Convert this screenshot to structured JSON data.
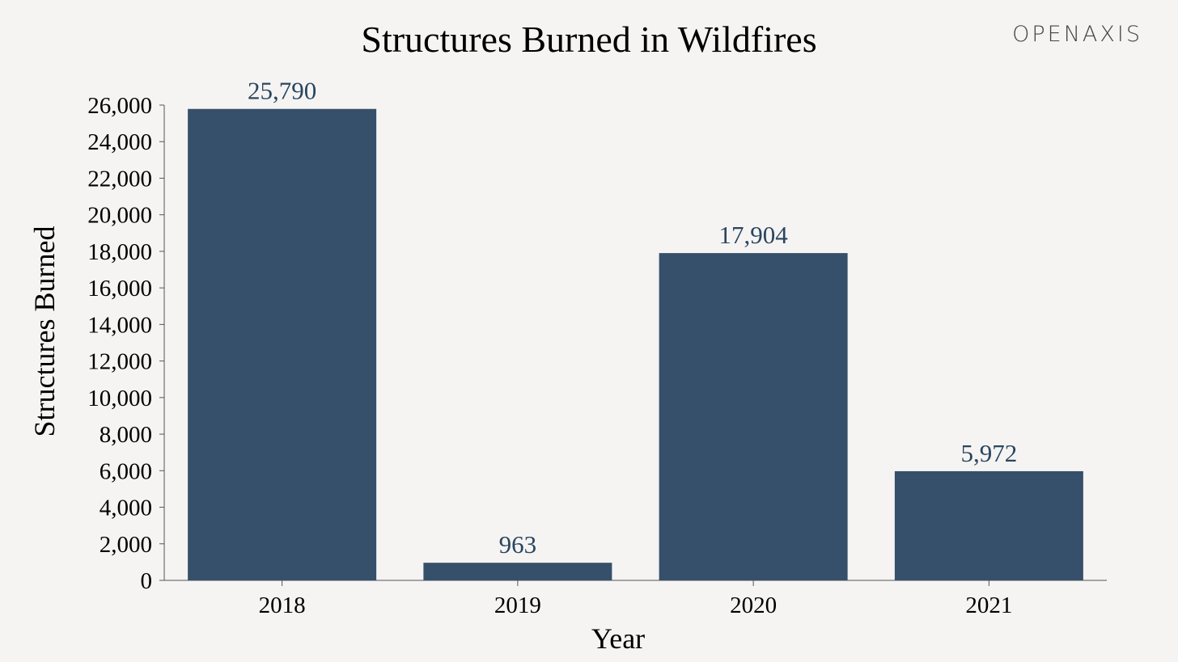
{
  "brand": {
    "logo_text": "OPENAXIS"
  },
  "colors": {
    "background": "#f5f4f2",
    "bar": "#36506b",
    "label": "#2a4560",
    "axis": "#555555",
    "brand": "#444444"
  },
  "chart_data": {
    "type": "bar",
    "title": "Structures Burned in Wildfires",
    "xlabel": "Year",
    "ylabel": "Structures Burned",
    "categories": [
      "2018",
      "2019",
      "2020",
      "2021"
    ],
    "values": [
      25790,
      963,
      17904,
      5972
    ],
    "data_labels": [
      "25,790",
      "963",
      "17,904",
      "5,972"
    ],
    "ylim": [
      0,
      26000
    ],
    "y_ticks": [
      0,
      2000,
      4000,
      6000,
      8000,
      10000,
      12000,
      14000,
      16000,
      18000,
      20000,
      22000,
      24000,
      26000
    ],
    "y_tick_labels": [
      "0",
      "2,000",
      "4,000",
      "6,000",
      "8,000",
      "10,000",
      "12,000",
      "14,000",
      "16,000",
      "18,000",
      "20,000",
      "22,000",
      "24,000",
      "26,000"
    ],
    "grid": false,
    "legend": "none"
  }
}
